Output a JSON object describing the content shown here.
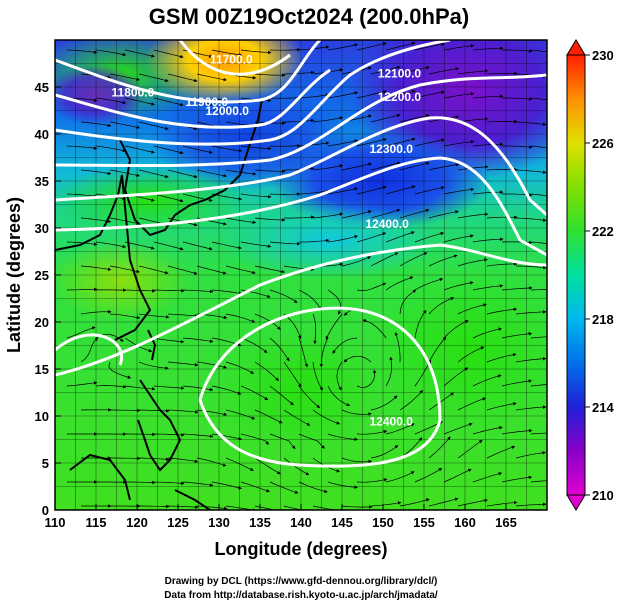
{
  "chart_data": {
    "type": "heatmap",
    "title": "GSM 00Z19Oct2024 (200.0hPa)",
    "xlabel": "Longitude (degrees)",
    "ylabel": "Latitude  (degrees)",
    "xlim": [
      110,
      170
    ],
    "ylim": [
      0,
      50
    ],
    "x_ticks": [
      "110",
      "115",
      "120",
      "125",
      "130",
      "135",
      "140",
      "145",
      "150",
      "155",
      "160",
      "165"
    ],
    "y_ticks": [
      "0",
      "5",
      "10",
      "15",
      "20",
      "25",
      "30",
      "35",
      "40",
      "45"
    ],
    "grid": true,
    "colorbar": {
      "range": [
        210,
        230
      ],
      "ticks": [
        "210",
        "214",
        "218",
        "222",
        "226",
        "230"
      ],
      "placement": "right"
    },
    "contour_labels": [
      {
        "text": "11700.0",
        "lon": 131.5,
        "lat": 47.5
      },
      {
        "text": "11800.0",
        "lon": 119.5,
        "lat": 44.0
      },
      {
        "text": "11900.0",
        "lon": 128.5,
        "lat": 43.0
      },
      {
        "text": "12000.0",
        "lon": 131.0,
        "lat": 42.0
      },
      {
        "text": "12100.0",
        "lon": 152.0,
        "lat": 46.0
      },
      {
        "text": "12200.0",
        "lon": 152.0,
        "lat": 43.5
      },
      {
        "text": "12300.0",
        "lon": 151.0,
        "lat": 38.0
      },
      {
        "text": "12400.0",
        "lon": 150.5,
        "lat": 30.0
      },
      {
        "text": "12400.0",
        "lon": 151.0,
        "lat": 9.0
      }
    ]
  },
  "credits": {
    "line1": "Drawing by DCL (https://www.gfd-dennou.org/library/dcl/)",
    "line2": "Data from http://database.rish.kyoto-u.ac.jp/arch/jmadata/"
  }
}
